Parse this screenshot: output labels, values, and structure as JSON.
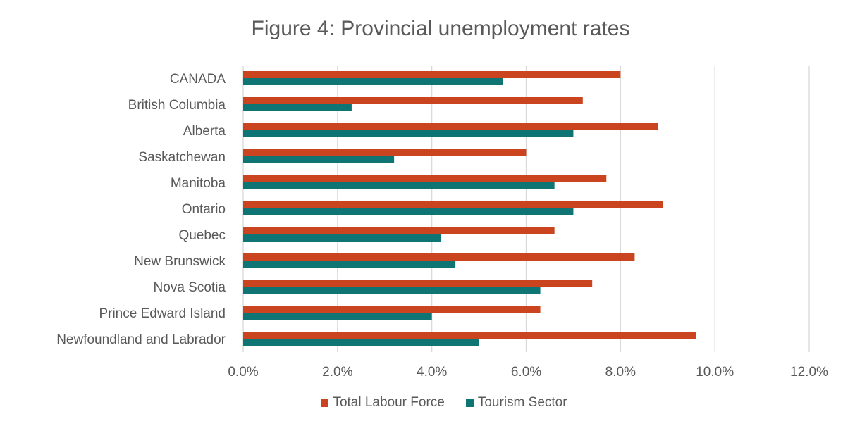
{
  "chart_data": {
    "type": "bar",
    "orientation": "horizontal",
    "title": "Figure 4: Provincial unemployment rates",
    "categories": [
      "CANADA",
      "British Columbia",
      "Alberta",
      "Saskatchewan",
      "Manitoba",
      "Ontario",
      "Quebec",
      "New Brunswick",
      "Nova Scotia",
      "Prince Edward Island",
      "Newfoundland and Labrador"
    ],
    "series": [
      {
        "name": "Total Labour Force",
        "color": "#C9441F",
        "values": [
          8.0,
          7.2,
          8.8,
          6.0,
          7.7,
          8.9,
          6.6,
          8.3,
          7.4,
          6.3,
          9.6
        ]
      },
      {
        "name": "Tourism Sector",
        "color": "#0E7474",
        "values": [
          5.5,
          2.3,
          7.0,
          3.2,
          6.6,
          7.0,
          4.2,
          4.5,
          6.3,
          4.0,
          5.0
        ]
      }
    ],
    "xlim": [
      0,
      12
    ],
    "x_ticks": [
      "0.0%",
      "2.0%",
      "4.0%",
      "6.0%",
      "8.0%",
      "10.0%",
      "12.0%"
    ],
    "grid": true,
    "legend_position": "bottom"
  }
}
